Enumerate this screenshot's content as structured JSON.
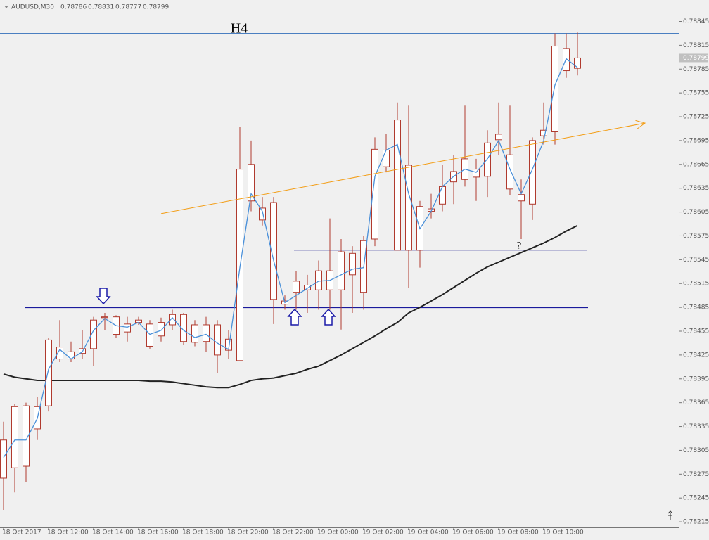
{
  "chart_data": {
    "type": "candlestick",
    "symbol": "AUDUSD,M30",
    "categories": [
      "18 Oct 2017",
      null,
      null,
      null,
      "18 Oct 12:00",
      null,
      null,
      null,
      "18 Oct 14:00",
      null,
      null,
      null,
      "18 Oct 16:00",
      null,
      null,
      null,
      "18 Oct 18:00",
      null,
      null,
      null,
      "18 Oct 20:00",
      null,
      null,
      null,
      "18 Oct 22:00",
      null,
      null,
      null,
      "19 Oct 00:00",
      null,
      null,
      null,
      "19 Oct 02:00",
      null,
      null,
      null,
      "19 Oct 04:00",
      null,
      null,
      null,
      "19 Oct 06:00",
      null,
      null,
      null,
      "19 Oct 08:00",
      null,
      null,
      null,
      "19 Oct 10:00",
      null,
      null,
      null
    ],
    "open": [
      0.7827,
      0.7836,
      0.78285,
      0.78332,
      0.78361,
      0.7842,
      0.7842,
      0.78427,
      0.78433,
      0.78472,
      0.78473,
      0.78454,
      0.78466,
      0.78464,
      0.78449,
      0.78463,
      0.78476,
      0.78441,
      0.78463,
      0.78463,
      0.78431,
      0.78418,
      0.78665,
      0.7861,
      0.78617,
      0.78489,
      0.78504,
      0.78507,
      0.78507,
      0.78507,
      0.78507,
      0.78526,
      0.78504,
      0.78571,
      0.78662,
      0.78721,
      0.78664,
      0.78557,
      0.78606,
      0.78615,
      0.78643,
      0.78646,
      0.78649,
      0.7865,
      0.78696,
      0.78677,
      0.78619,
      0.78615,
      0.78701,
      0.78706,
      0.78783,
      0.78786
    ],
    "high": [
      0.78341,
      0.78363,
      0.78365,
      0.78372,
      0.78447,
      0.78469,
      0.78442,
      0.78456,
      0.78473,
      0.78478,
      0.78475,
      0.78473,
      0.78473,
      0.78469,
      0.78472,
      0.78482,
      0.78478,
      0.78469,
      0.78473,
      0.78469,
      0.78456,
      0.78712,
      0.78695,
      0.78624,
      0.78624,
      0.785,
      0.78531,
      0.78526,
      0.78544,
      0.78597,
      0.78571,
      0.78562,
      0.78575,
      0.78699,
      0.78703,
      0.78743,
      0.78739,
      0.78619,
      0.78628,
      0.78664,
      0.78677,
      0.78739,
      0.78672,
      0.78708,
      0.78743,
      0.78739,
      0.78646,
      0.78699,
      0.78743,
      0.7883,
      0.7883,
      0.78831
    ],
    "low": [
      0.7823,
      0.78252,
      0.78265,
      0.78318,
      0.78354,
      0.78416,
      0.78416,
      0.7842,
      0.78411,
      0.78456,
      0.78447,
      0.78442,
      0.78463,
      0.78433,
      0.78442,
      0.78456,
      0.78438,
      0.78436,
      0.78429,
      0.78402,
      0.7842,
      0.78418,
      0.78606,
      0.78588,
      0.78464,
      0.78482,
      0.78482,
      0.78478,
      0.78482,
      0.78482,
      0.78457,
      0.78478,
      0.78482,
      0.78562,
      0.78655,
      0.78557,
      0.78509,
      0.78535,
      0.78597,
      0.78606,
      0.78615,
      0.78637,
      0.78619,
      0.78624,
      0.78677,
      0.78626,
      0.78571,
      0.78595,
      0.7869,
      0.7869,
      0.78774,
      0.78777
    ],
    "close": [
      0.78318,
      0.78283,
      0.78361,
      0.7836,
      0.78444,
      0.78435,
      0.78429,
      0.78433,
      0.78469,
      0.78473,
      0.78451,
      0.78464,
      0.78469,
      0.78436,
      0.78466,
      0.78476,
      0.78442,
      0.78463,
      0.78442,
      0.78425,
      0.78445,
      0.78659,
      0.78619,
      0.78595,
      0.78495,
      0.78493,
      0.78518,
      0.78513,
      0.78531,
      0.78531,
      0.78555,
      0.78553,
      0.78569,
      0.78684,
      0.78683,
      0.78557,
      0.78557,
      0.78612,
      0.78609,
      0.78637,
      0.78656,
      0.78672,
      0.78659,
      0.78692,
      0.78703,
      0.78634,
      0.78627,
      0.78695,
      0.78708,
      0.78814,
      0.78811,
      0.78799
    ],
    "color": "#b03a2e",
    "ma_fast": {
      "color": "#4a90d9",
      "values": [
        0.78296,
        0.78318,
        0.78318,
        0.78345,
        0.78407,
        0.78432,
        0.7842,
        0.78429,
        0.78456,
        0.78471,
        0.78462,
        0.7846,
        0.78466,
        0.78451,
        0.78456,
        0.78472,
        0.78456,
        0.78447,
        0.78451,
        0.7844,
        0.78432,
        0.78535,
        0.78628,
        0.78606,
        0.78544,
        0.78491,
        0.785,
        0.78509,
        0.78518,
        0.78519,
        0.78526,
        0.78533,
        0.78535,
        0.7865,
        0.78683,
        0.7869,
        0.78628,
        0.78584,
        0.78606,
        0.78637,
        0.7865,
        0.78659,
        0.78655,
        0.78672,
        0.78695,
        0.78659,
        0.78628,
        0.78659,
        0.78695,
        0.78765,
        0.78798,
        0.78787
      ]
    },
    "ma_slow": {
      "color": "#222222",
      "values": [
        0.78401,
        0.78397,
        0.78395,
        0.78393,
        0.78393,
        0.78393,
        0.78393,
        0.78393,
        0.78393,
        0.78393,
        0.78393,
        0.78393,
        0.78393,
        0.78392,
        0.78392,
        0.78391,
        0.78389,
        0.78387,
        0.78385,
        0.78384,
        0.78384,
        0.78388,
        0.78393,
        0.78395,
        0.78396,
        0.78399,
        0.78402,
        0.78407,
        0.78411,
        0.78418,
        0.78425,
        0.78433,
        0.78441,
        0.78449,
        0.78458,
        0.78466,
        0.78478,
        0.78485,
        0.78493,
        0.78501,
        0.7851,
        0.78519,
        0.78528,
        0.78536,
        0.78542,
        0.78548,
        0.78554,
        0.7856,
        0.78566,
        0.78573,
        0.78581,
        0.78588
      ]
    },
    "hlines": [
      {
        "value": 0.7883,
        "color": "#4a7fc1"
      },
      {
        "value": 0.78557,
        "color": "#1a1a8c"
      },
      {
        "value": 0.78485,
        "color": "#1a1a9c"
      }
    ],
    "trendline": {
      "color": "#f39c12",
      "x": [
        14,
        57
      ],
      "y": [
        0.78603,
        0.78717
      ]
    },
    "annotations": [
      "H4",
      "?"
    ],
    "ylim": [
      0.78208,
      0.78872
    ],
    "yticks": [
      0.78845,
      0.78815,
      0.78785,
      0.78755,
      0.78725,
      0.78695,
      0.78665,
      0.78635,
      0.78605,
      0.78575,
      0.78545,
      0.78515,
      0.78485,
      0.78455,
      0.78425,
      0.78395,
      0.78365,
      0.78335,
      0.78305,
      0.78275,
      0.78245,
      0.78215
    ],
    "grid": false
  }
}
